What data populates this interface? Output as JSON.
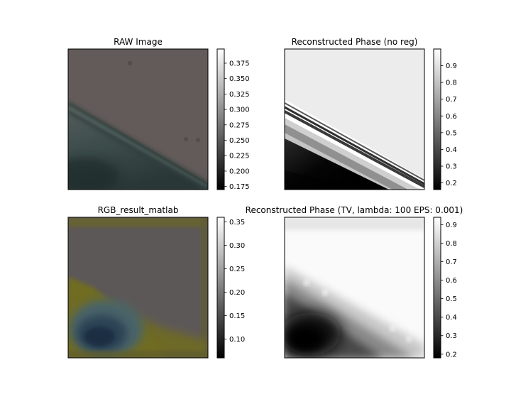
{
  "chart_data": [
    {
      "type": "heatmap",
      "title": "RAW Image",
      "image": "raw",
      "colorbar": {
        "cmap": "gray",
        "range": [
          0.17,
          0.398
        ],
        "ticks": [
          0.175,
          0.2,
          0.225,
          0.25,
          0.275,
          0.3,
          0.325,
          0.35,
          0.375
        ],
        "tick_labels": [
          "0.175",
          "0.200",
          "0.225",
          "0.250",
          "0.275",
          "0.300",
          "0.325",
          "0.350",
          "0.375"
        ]
      }
    },
    {
      "type": "heatmap",
      "title": "Reconstructed Phase (no reg)",
      "image": "phase_noreg",
      "colorbar": {
        "cmap": "gray",
        "range": [
          0.16,
          1.0
        ],
        "ticks": [
          0.2,
          0.3,
          0.4,
          0.5,
          0.6,
          0.7,
          0.8,
          0.9
        ],
        "tick_labels": [
          "0.2",
          "0.3",
          "0.4",
          "0.5",
          "0.6",
          "0.7",
          "0.8",
          "0.9"
        ]
      }
    },
    {
      "type": "heatmap",
      "title": "RGB_result_matlab",
      "image": "rgb_matlab",
      "colorbar": {
        "cmap": "gray",
        "range": [
          0.06,
          0.36
        ],
        "ticks": [
          0.1,
          0.15,
          0.2,
          0.25,
          0.3,
          0.35
        ],
        "tick_labels": [
          "0.10",
          "0.15",
          "0.20",
          "0.25",
          "0.30",
          "0.35"
        ]
      }
    },
    {
      "type": "heatmap",
      "title": "Reconstructed Phase (TV, lambda: 100 EPS: 0.001)",
      "image": "phase_tv",
      "colorbar": {
        "cmap": "gray",
        "range": [
          0.18,
          0.94
        ],
        "ticks": [
          0.2,
          0.3,
          0.4,
          0.5,
          0.6,
          0.7,
          0.8,
          0.9
        ],
        "tick_labels": [
          "0.2",
          "0.3",
          "0.4",
          "0.5",
          "0.6",
          "0.7",
          "0.8",
          "0.9"
        ]
      }
    }
  ]
}
